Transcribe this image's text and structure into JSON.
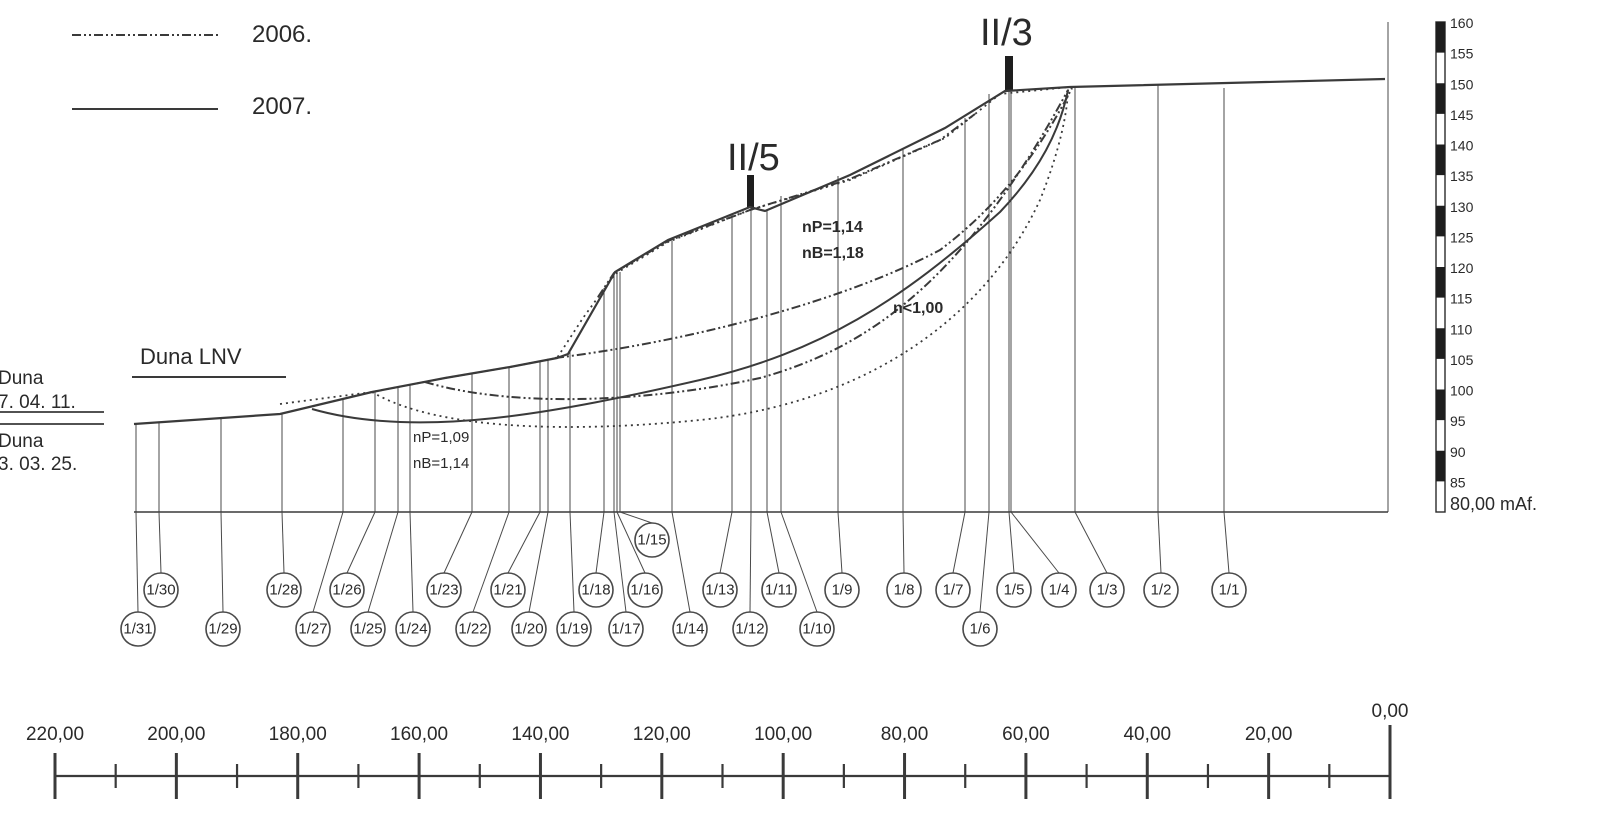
{
  "legend": {
    "items": [
      {
        "label": "2006.",
        "style": "dash-dot"
      },
      {
        "label": "2007.",
        "style": "solid"
      }
    ]
  },
  "sections": {
    "left": "II/5",
    "right": "II/3"
  },
  "river": {
    "name": "Duna LNV",
    "level_top_name": "Duna",
    "level_top_date": "7. 04. 11.",
    "level_bottom_name": "Duna",
    "level_bottom_date": "3. 03. 25."
  },
  "factors": {
    "upper_p": "nP=1,14",
    "upper_b": "nB=1,18",
    "mid": "n<1,00",
    "lower_p": "nP=1,09",
    "lower_b": "nB=1,14"
  },
  "elevation_scale": {
    "ticks": [
      "160",
      "155",
      "150",
      "145",
      "140",
      "135",
      "130",
      "125",
      "120",
      "115",
      "110",
      "105",
      "100",
      "95",
      "90",
      "85"
    ],
    "base_label": "80,00 mAf."
  },
  "distance_scale": {
    "labels": [
      "220,00",
      "200,00",
      "180,00",
      "160,00",
      "140,00",
      "120,00",
      "100,00",
      "80,00",
      "60,00",
      "40,00",
      "20,00",
      "0,00"
    ]
  },
  "boreholes": [
    "1/1",
    "1/2",
    "1/3",
    "1/4",
    "1/5",
    "1/6",
    "1/7",
    "1/8",
    "1/9",
    "1/10",
    "1/11",
    "1/12",
    "1/13",
    "1/14",
    "1/15",
    "1/16",
    "1/17",
    "1/18",
    "1/19",
    "1/20",
    "1/21",
    "1/22",
    "1/23",
    "1/24",
    "1/25",
    "1/26",
    "1/27",
    "1/28",
    "1/29",
    "1/30",
    "1/31"
  ],
  "colors": {
    "line": "#3a3a3a",
    "text": "#2a2a2a",
    "scale_fill": "#1e1e1e"
  }
}
